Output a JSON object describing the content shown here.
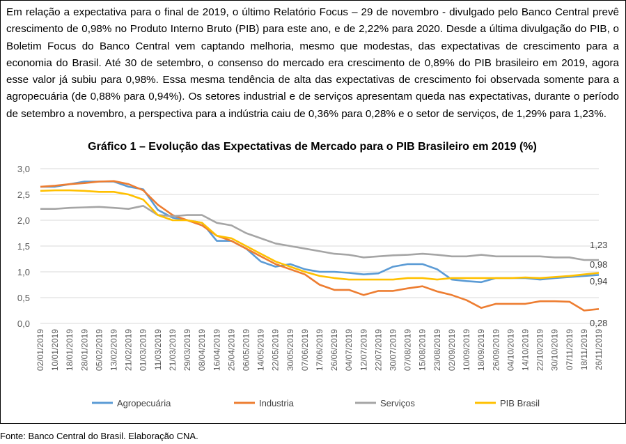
{
  "paragraph": "Em relação a expectativa para o final de 2019, o último Relatório Focus – 29 de novembro - divulgado pelo Banco Central prevê crescimento de 0,98% no Produto Interno Bruto (PIB) para este ano, e de 2,22% para 2020. Desde a última divulgação do PIB, o Boletim Focus do Banco Central vem captando melhoria, mesmo que modestas, das expectativas de crescimento para a economia do Brasil. Até 30 de setembro, o consenso do mercado era crescimento de 0,89% do PIB brasileiro em 2019, agora esse valor já subiu para 0,98%. Essa mesma tendência de alta das expectativas de crescimento foi observada somente para a agropecuária (de 0,88% para 0,94%). Os setores industrial e de serviços apresentam queda nas expectativas, durante o período de setembro a novembro, a perspectiva para a indústria caiu de 0,36% para 0,28% e o setor de serviços, de 1,29% para 1,23%.",
  "source": "Fonte: Banco Central do Brasil. Elaboração CNA.",
  "chart_data": {
    "type": "line",
    "title": "Gráfico 1 – Evolução das Expectativas de Mercado para o PIB Brasileiro em 2019 (%)",
    "xlabel": "",
    "ylabel": "",
    "ylim": [
      0,
      3
    ],
    "yticks": [
      "0,0",
      "0,5",
      "1,0",
      "1,5",
      "2,0",
      "2,5",
      "3,0"
    ],
    "categories": [
      "02/01/2019",
      "10/01/2019",
      "18/01/2019",
      "28/01/2019",
      "05/02/2019",
      "13/02/2019",
      "21/02/2019",
      "01/03/2019",
      "11/03/2019",
      "21/03/2019",
      "29/03/2019",
      "08/04/2019",
      "16/04/2019",
      "25/04/2019",
      "06/05/2019",
      "14/05/2019",
      "22/05/2019",
      "30/05/2019",
      "07/06/2019",
      "17/06/2019",
      "26/06/2019",
      "04/07/2019",
      "12/07/2019",
      "22/07/2019",
      "30/07/2019",
      "07/08/2019",
      "15/08/2019",
      "23/08/2019",
      "02/09/2019",
      "10/09/2019",
      "18/09/2019",
      "26/09/2019",
      "04/10/2019",
      "14/10/2019",
      "22/10/2019",
      "30/10/2019",
      "07/11/2019",
      "18/11/2019",
      "26/11/2019"
    ],
    "legend_position": "bottom",
    "series": [
      {
        "name": "Agropecuária",
        "color": "#5B9BD5",
        "values": [
          2.65,
          2.65,
          2.7,
          2.75,
          2.75,
          2.75,
          2.65,
          2.6,
          2.2,
          2.05,
          2.0,
          1.95,
          1.6,
          1.6,
          1.45,
          1.2,
          1.1,
          1.15,
          1.05,
          1.0,
          1.0,
          0.98,
          0.95,
          0.97,
          1.1,
          1.15,
          1.15,
          1.05,
          0.85,
          0.82,
          0.8,
          0.88,
          0.88,
          0.88,
          0.85,
          0.88,
          0.9,
          0.92,
          0.94
        ],
        "end_label": "0,94"
      },
      {
        "name": "Industria",
        "color": "#ED7D31",
        "values": [
          2.65,
          2.67,
          2.7,
          2.72,
          2.75,
          2.76,
          2.7,
          2.58,
          2.3,
          2.1,
          2.0,
          1.9,
          1.7,
          1.6,
          1.45,
          1.3,
          1.15,
          1.05,
          0.95,
          0.75,
          0.65,
          0.65,
          0.55,
          0.63,
          0.63,
          0.68,
          0.72,
          0.62,
          0.55,
          0.45,
          0.3,
          0.38,
          0.38,
          0.38,
          0.43,
          0.43,
          0.42,
          0.25,
          0.28
        ],
        "end_label": "0,28"
      },
      {
        "name": "Serviços",
        "color": "#A5A5A5",
        "values": [
          2.22,
          2.22,
          2.24,
          2.25,
          2.26,
          2.24,
          2.22,
          2.28,
          2.1,
          2.08,
          2.1,
          2.1,
          1.95,
          1.9,
          1.75,
          1.65,
          1.55,
          1.5,
          1.45,
          1.4,
          1.35,
          1.33,
          1.28,
          1.3,
          1.32,
          1.33,
          1.35,
          1.33,
          1.3,
          1.3,
          1.33,
          1.3,
          1.3,
          1.3,
          1.3,
          1.28,
          1.28,
          1.23,
          1.23
        ],
        "end_label": "1,23"
      },
      {
        "name": "PIB Brasil",
        "color": "#FFC000",
        "values": [
          2.57,
          2.58,
          2.58,
          2.57,
          2.55,
          2.55,
          2.5,
          2.4,
          2.1,
          2.0,
          2.0,
          1.95,
          1.7,
          1.65,
          1.5,
          1.35,
          1.2,
          1.1,
          1.0,
          0.92,
          0.88,
          0.85,
          0.85,
          0.85,
          0.85,
          0.88,
          0.88,
          0.85,
          0.88,
          0.88,
          0.88,
          0.88,
          0.88,
          0.89,
          0.88,
          0.9,
          0.92,
          0.95,
          0.98
        ],
        "end_label": "0,98"
      }
    ]
  }
}
